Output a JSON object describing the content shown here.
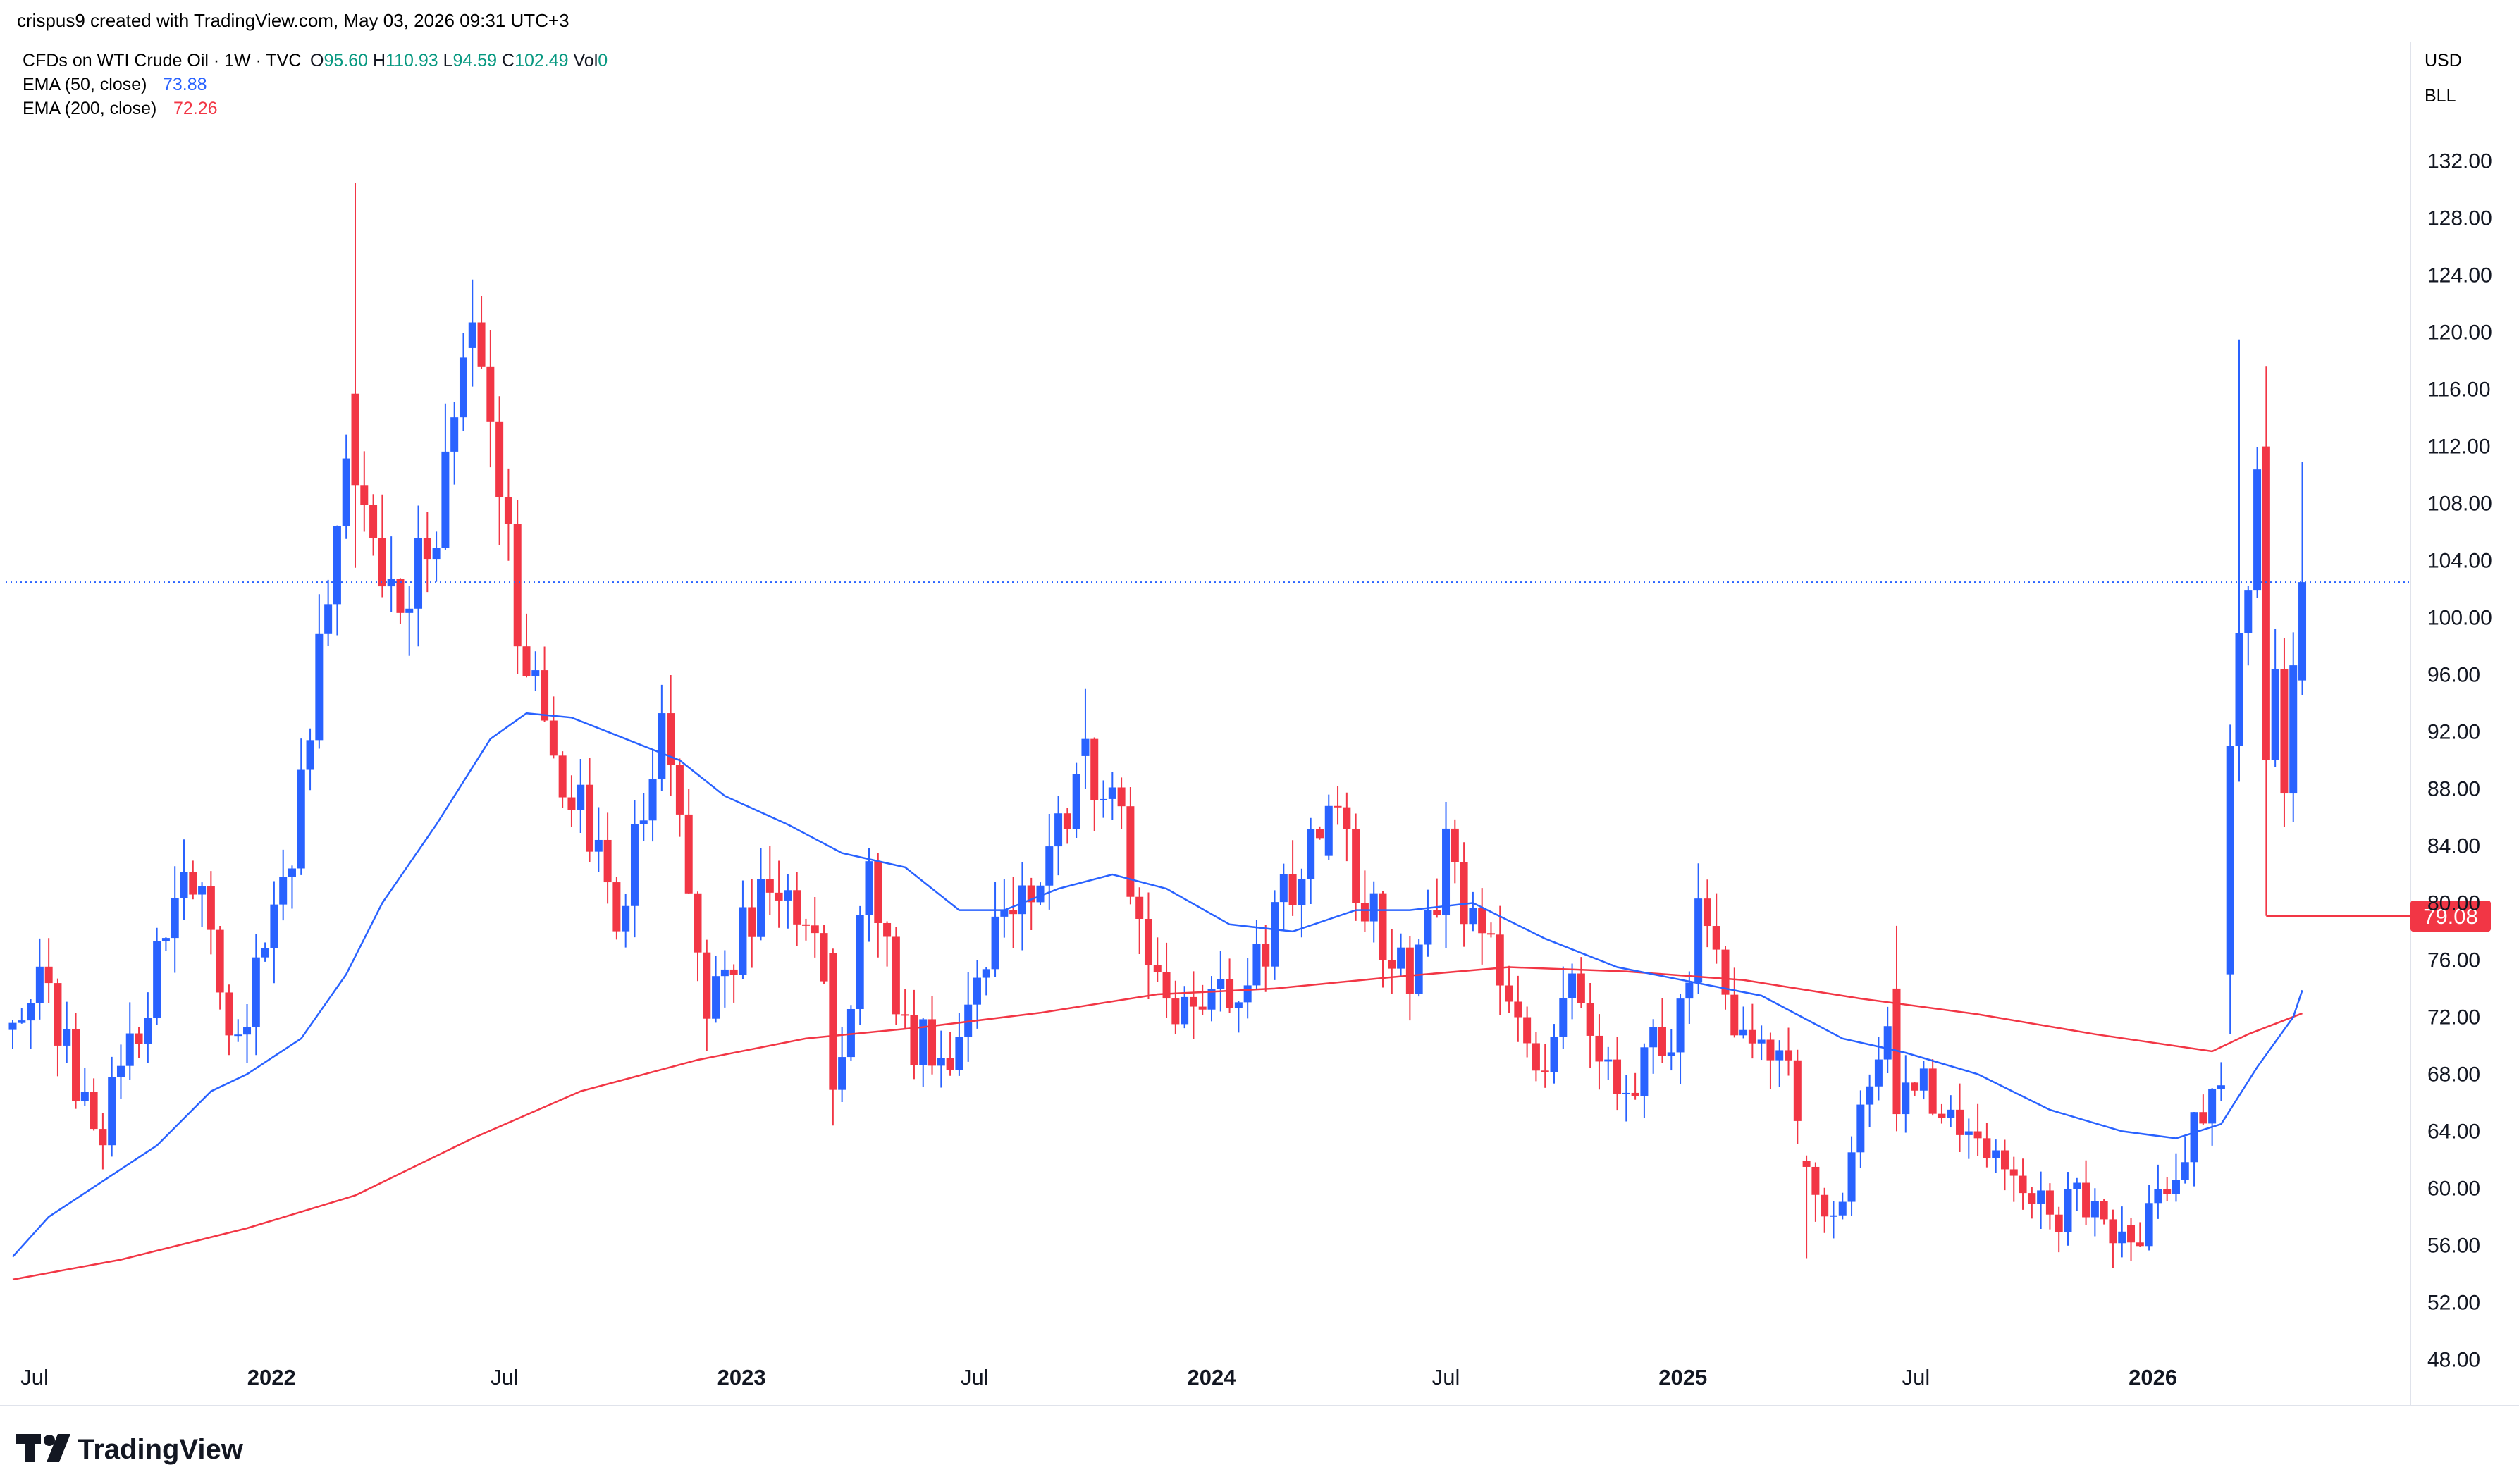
{
  "header": {
    "credit": "crispus9 created with TradingView.com, May 03, 2026 09:31 UTC+3",
    "symbol": "CFDs on WTI Crude Oil · 1W · TVC",
    "ohlc": [
      {
        "k": "O",
        "v": "95.60"
      },
      {
        "k": "H",
        "v": "110.93"
      },
      {
        "k": "L",
        "v": "94.59"
      },
      {
        "k": "C",
        "v": "102.49"
      },
      {
        "k": "Vol",
        "v": "0"
      }
    ],
    "ema50": {
      "label": "EMA (50, close)",
      "value": "73.88"
    },
    "ema200": {
      "label": "EMA (200, close)",
      "value": "72.26"
    }
  },
  "colors": {
    "up": "#2962ff",
    "down": "#f23645",
    "ema50": "#2962ff",
    "ema200": "#f23645",
    "last_price_line": "#2962ff",
    "ohlc_value": "#089981",
    "text": "#131722"
  },
  "brand": {
    "name": "TradingView",
    "icon": "tradingview-logo-icon"
  },
  "chart_data": {
    "type": "candlestick",
    "interval": "1W",
    "currency": "USD",
    "unit": "BLL",
    "ylim": [
      45,
      135
    ],
    "yticks": [
      "48.00",
      "52.00",
      "56.00",
      "60.00",
      "64.00",
      "68.00",
      "72.00",
      "76.00",
      "80.00",
      "84.00",
      "88.00",
      "92.00",
      "96.00",
      "100.00",
      "104.00",
      "108.00",
      "112.00",
      "116.00",
      "120.00",
      "124.00",
      "128.00",
      "132.00"
    ],
    "xlim": [
      "2021-06-14",
      "2026-07-20"
    ],
    "xticks": [
      {
        "date": "2021-07-01",
        "label": "Jul",
        "year": false
      },
      {
        "date": "2022-01-01",
        "label": "2022",
        "year": true
      },
      {
        "date": "2022-07-01",
        "label": "Jul",
        "year": false
      },
      {
        "date": "2023-01-01",
        "label": "2023",
        "year": true
      },
      {
        "date": "2023-07-01",
        "label": "Jul",
        "year": false
      },
      {
        "date": "2024-01-01",
        "label": "2024",
        "year": true
      },
      {
        "date": "2024-07-01",
        "label": "Jul",
        "year": false
      },
      {
        "date": "2025-01-01",
        "label": "2025",
        "year": true
      },
      {
        "date": "2025-07-01",
        "label": "Jul",
        "year": false
      },
      {
        "date": "2026-01-01",
        "label": "2026",
        "year": true
      }
    ],
    "last_price": 102.49,
    "horizontal_line": {
      "value": 79.08,
      "label": "79.08",
      "from": "2026-03-30"
    },
    "key_candles": [
      {
        "date": "2022-03-07",
        "open": 115.7,
        "high": 130.5,
        "low": 103.5,
        "close": 109.3
      },
      {
        "date": "2022-06-06",
        "open": 118.9,
        "high": 123.7,
        "low": 116.2,
        "close": 120.7
      },
      {
        "date": "2023-03-13",
        "open": 76.5,
        "high": 76.8,
        "low": 64.4,
        "close": 66.9
      },
      {
        "date": "2023-09-25",
        "open": 90.3,
        "high": 95.0,
        "low": 88.0,
        "close": 91.5
      },
      {
        "date": "2024-04-01",
        "open": 83.3,
        "high": 87.6,
        "low": 83.0,
        "close": 86.8
      },
      {
        "date": "2025-04-07",
        "open": 61.9,
        "high": 62.3,
        "low": 55.1,
        "close": 61.5
      },
      {
        "date": "2025-06-16",
        "open": 74.0,
        "high": 78.4,
        "low": 64.0,
        "close": 65.2
      },
      {
        "date": "2025-12-15",
        "open": 57.4,
        "high": 57.9,
        "low": 54.9,
        "close": 56.2
      },
      {
        "date": "2026-03-02",
        "open": 75.0,
        "high": 92.5,
        "low": 70.8,
        "close": 91.0
      },
      {
        "date": "2026-03-09",
        "open": 91.0,
        "high": 119.5,
        "low": 88.5,
        "close": 98.9
      },
      {
        "date": "2026-03-30",
        "open": 112.0,
        "high": 117.6,
        "low": 79.1,
        "close": 90.0
      },
      {
        "date": "2026-04-27",
        "open": 95.6,
        "high": 110.93,
        "low": 94.59,
        "close": 102.49
      }
    ],
    "trend_anchors": [
      {
        "date": "2021-06-14",
        "c": 72.6
      },
      {
        "date": "2021-07-12",
        "c": 73.8
      },
      {
        "date": "2021-08-16",
        "c": 63.0
      },
      {
        "date": "2021-09-27",
        "c": 73.5
      },
      {
        "date": "2021-10-25",
        "c": 83.6
      },
      {
        "date": "2021-12-06",
        "c": 70.0
      },
      {
        "date": "2022-01-24",
        "c": 87.0
      },
      {
        "date": "2022-02-28",
        "c": 112.0
      },
      {
        "date": "2022-03-21",
        "c": 105.0
      },
      {
        "date": "2022-04-11",
        "c": 98.0
      },
      {
        "date": "2022-05-16",
        "c": 110.0
      },
      {
        "date": "2022-06-06",
        "c": 120.7
      },
      {
        "date": "2022-06-27",
        "c": 107.0
      },
      {
        "date": "2022-07-25",
        "c": 94.0
      },
      {
        "date": "2022-08-29",
        "c": 86.0
      },
      {
        "date": "2022-09-26",
        "c": 79.0
      },
      {
        "date": "2022-10-31",
        "c": 92.0
      },
      {
        "date": "2022-12-05",
        "c": 73.0
      },
      {
        "date": "2023-01-16",
        "c": 80.0
      },
      {
        "date": "2023-02-27",
        "c": 79.5
      },
      {
        "date": "2023-03-20",
        "c": 68.0
      },
      {
        "date": "2023-04-10",
        "c": 82.5
      },
      {
        "date": "2023-05-08",
        "c": 70.5
      },
      {
        "date": "2023-06-12",
        "c": 70.0
      },
      {
        "date": "2023-07-24",
        "c": 80.0
      },
      {
        "date": "2023-08-21",
        "c": 81.0
      },
      {
        "date": "2023-09-25",
        "c": 91.0
      },
      {
        "date": "2023-10-23",
        "c": 85.0
      },
      {
        "date": "2023-11-13",
        "c": 76.0
      },
      {
        "date": "2023-12-11",
        "c": 71.5
      },
      {
        "date": "2024-01-15",
        "c": 73.5
      },
      {
        "date": "2024-02-19",
        "c": 78.5
      },
      {
        "date": "2024-04-01",
        "c": 86.5
      },
      {
        "date": "2024-05-06",
        "c": 78.5
      },
      {
        "date": "2024-06-03",
        "c": 75.5
      },
      {
        "date": "2024-07-01",
        "c": 83.0
      },
      {
        "date": "2024-08-05",
        "c": 76.0
      },
      {
        "date": "2024-09-09",
        "c": 67.5
      },
      {
        "date": "2024-10-07",
        "c": 75.0
      },
      {
        "date": "2024-11-11",
        "c": 67.0
      },
      {
        "date": "2024-12-23",
        "c": 71.0
      },
      {
        "date": "2025-01-13",
        "c": 78.5
      },
      {
        "date": "2025-02-17",
        "c": 70.0
      },
      {
        "date": "2025-03-24",
        "c": 68.0
      },
      {
        "date": "2025-04-07",
        "c": 61.5
      },
      {
        "date": "2025-04-28",
        "c": 58.0
      },
      {
        "date": "2025-06-09",
        "c": 72.0
      },
      {
        "date": "2025-06-16",
        "c": 65.2
      },
      {
        "date": "2025-07-07",
        "c": 67.5
      },
      {
        "date": "2025-08-04",
        "c": 63.0
      },
      {
        "date": "2025-09-08",
        "c": 62.5
      },
      {
        "date": "2025-10-13",
        "c": 57.5
      },
      {
        "date": "2025-11-10",
        "c": 59.5
      },
      {
        "date": "2025-12-15",
        "c": 56.2
      },
      {
        "date": "2026-01-12",
        "c": 59.5
      },
      {
        "date": "2026-02-02",
        "c": 64.5
      },
      {
        "date": "2026-02-23",
        "c": 67.0
      },
      {
        "date": "2026-03-02",
        "c": 91.0
      },
      {
        "date": "2026-03-09",
        "c": 98.9
      },
      {
        "date": "2026-03-16",
        "c": 100.5
      },
      {
        "date": "2026-03-23",
        "c": 112.0
      },
      {
        "date": "2026-03-30",
        "c": 90.0
      },
      {
        "date": "2026-04-06",
        "c": 98.5
      },
      {
        "date": "2026-04-13",
        "c": 89.0
      },
      {
        "date": "2026-04-20",
        "c": 95.6
      },
      {
        "date": "2026-04-27",
        "c": 102.49
      }
    ],
    "ema50": [
      {
        "date": "2021-06-14",
        "v": 55.2
      },
      {
        "date": "2021-07-12",
        "v": 58.0
      },
      {
        "date": "2021-08-23",
        "v": 60.5
      },
      {
        "date": "2021-10-04",
        "v": 63.0
      },
      {
        "date": "2021-11-15",
        "v": 66.8
      },
      {
        "date": "2021-12-13",
        "v": 68.0
      },
      {
        "date": "2022-01-24",
        "v": 70.5
      },
      {
        "date": "2022-02-28",
        "v": 75.0
      },
      {
        "date": "2022-03-28",
        "v": 80.0
      },
      {
        "date": "2022-05-09",
        "v": 85.5
      },
      {
        "date": "2022-06-20",
        "v": 91.5
      },
      {
        "date": "2022-07-18",
        "v": 93.3
      },
      {
        "date": "2022-08-22",
        "v": 93.0
      },
      {
        "date": "2022-10-03",
        "v": 91.5
      },
      {
        "date": "2022-11-14",
        "v": 90.0
      },
      {
        "date": "2022-12-19",
        "v": 87.5
      },
      {
        "date": "2023-02-06",
        "v": 85.5
      },
      {
        "date": "2023-03-20",
        "v": 83.5
      },
      {
        "date": "2023-05-08",
        "v": 82.5
      },
      {
        "date": "2023-06-19",
        "v": 79.5
      },
      {
        "date": "2023-07-24",
        "v": 79.5
      },
      {
        "date": "2023-09-04",
        "v": 81.0
      },
      {
        "date": "2023-10-16",
        "v": 82.0
      },
      {
        "date": "2023-11-27",
        "v": 81.0
      },
      {
        "date": "2024-01-15",
        "v": 78.5
      },
      {
        "date": "2024-03-04",
        "v": 78.0
      },
      {
        "date": "2024-04-22",
        "v": 79.5
      },
      {
        "date": "2024-06-03",
        "v": 79.5
      },
      {
        "date": "2024-07-22",
        "v": 80.0
      },
      {
        "date": "2024-09-16",
        "v": 77.5
      },
      {
        "date": "2024-11-11",
        "v": 75.5
      },
      {
        "date": "2025-01-06",
        "v": 74.5
      },
      {
        "date": "2025-03-03",
        "v": 73.5
      },
      {
        "date": "2025-05-05",
        "v": 70.5
      },
      {
        "date": "2025-06-23",
        "v": 69.5
      },
      {
        "date": "2025-08-18",
        "v": 68.0
      },
      {
        "date": "2025-10-13",
        "v": 65.5
      },
      {
        "date": "2025-12-08",
        "v": 64.0
      },
      {
        "date": "2026-01-19",
        "v": 63.5
      },
      {
        "date": "2026-02-23",
        "v": 64.5
      },
      {
        "date": "2026-03-23",
        "v": 68.5
      },
      {
        "date": "2026-04-20",
        "v": 72.0
      },
      {
        "date": "2026-04-27",
        "v": 73.88
      }
    ],
    "ema200": [
      {
        "date": "2021-06-14",
        "v": 53.6
      },
      {
        "date": "2021-09-06",
        "v": 55.0
      },
      {
        "date": "2021-12-13",
        "v": 57.2
      },
      {
        "date": "2022-03-07",
        "v": 59.5
      },
      {
        "date": "2022-06-06",
        "v": 63.5
      },
      {
        "date": "2022-08-29",
        "v": 66.8
      },
      {
        "date": "2022-11-28",
        "v": 69.0
      },
      {
        "date": "2023-02-20",
        "v": 70.5
      },
      {
        "date": "2023-05-22",
        "v": 71.3
      },
      {
        "date": "2023-08-21",
        "v": 72.3
      },
      {
        "date": "2023-11-20",
        "v": 73.6
      },
      {
        "date": "2024-02-19",
        "v": 74.0
      },
      {
        "date": "2024-05-20",
        "v": 74.8
      },
      {
        "date": "2024-08-19",
        "v": 75.5
      },
      {
        "date": "2024-11-18",
        "v": 75.2
      },
      {
        "date": "2025-02-17",
        "v": 74.6
      },
      {
        "date": "2025-05-19",
        "v": 73.3
      },
      {
        "date": "2025-08-18",
        "v": 72.2
      },
      {
        "date": "2025-11-17",
        "v": 70.8
      },
      {
        "date": "2026-02-16",
        "v": 69.6
      },
      {
        "date": "2026-03-16",
        "v": 70.8
      },
      {
        "date": "2026-04-27",
        "v": 72.26
      }
    ]
  }
}
